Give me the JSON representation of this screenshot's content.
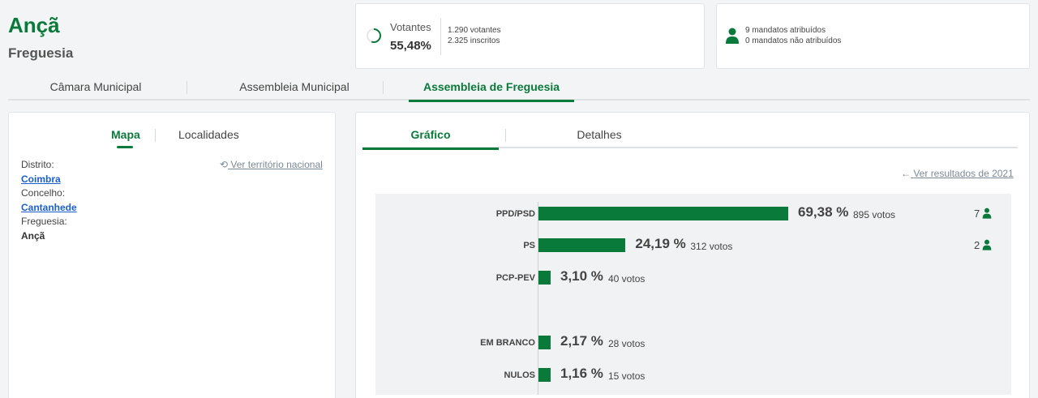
{
  "header": {
    "title": "Ançã",
    "subtitle": "Freguesia"
  },
  "votantes": {
    "label": "Votantes",
    "percent": "55,48%",
    "votantes_line": "1.290 votantes",
    "inscritos_line": "2.325 inscritos",
    "progress_fraction": 0.5548
  },
  "mandatos": {
    "atribuidos": "9 mandatos atribuídos",
    "nao_atribuidos": "0 mandatos não atribuídos"
  },
  "top_tabs": [
    "Câmara Municipal",
    "Assembleia Municipal",
    "Assembleia de Freguesia"
  ],
  "left": {
    "tabs": [
      "Mapa",
      "Localidades"
    ],
    "ver_link": "Ver território nacional",
    "distrito_label": "Distrito:",
    "distrito": "Coimbra",
    "concelho_label": "Concelho:",
    "concelho": "Cantanhede",
    "freguesia_label": "Freguesia:",
    "freguesia": "Ançã"
  },
  "right": {
    "tabs": [
      "Gráfico",
      "Detalhes"
    ],
    "ver_link": "Ver resultados de 2021"
  },
  "colors": {
    "accent": "#0a7a3a",
    "link": "#1a5fd1"
  },
  "chart_data": {
    "type": "bar",
    "categories": [
      "PPD/PSD",
      "PS",
      "PCP-PEV",
      "EM BRANCO",
      "NULOS"
    ],
    "values": [
      69.38,
      24.19,
      3.1,
      2.17,
      1.16
    ],
    "percent_labels": [
      "69,38 %",
      "24,19 %",
      "3,10 %",
      "2,17 %",
      "1,16 %"
    ],
    "votes_labels": [
      "895 votos",
      "312 votos",
      "40 votos",
      "28 votos",
      "15 votos"
    ],
    "mandatos": [
      "7",
      "2",
      "",
      "",
      ""
    ]
  }
}
